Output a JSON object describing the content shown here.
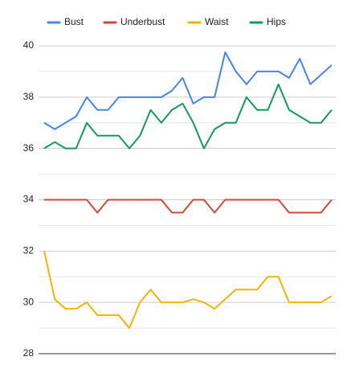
{
  "chart_data": {
    "type": "line",
    "series": [
      {
        "name": "Bust",
        "color": "#4285f4",
        "values": [
          37,
          36.75,
          37,
          37.25,
          38,
          37.5,
          37.5,
          38,
          38,
          38,
          38,
          38,
          38.25,
          38.75,
          37.75,
          38,
          38,
          39.75,
          39,
          38.5,
          39,
          39,
          39,
          38.75,
          39.5,
          38.5,
          38.875,
          39.25
        ]
      },
      {
        "name": "Underbust",
        "color": "#db4437",
        "values": [
          34,
          34,
          34,
          34,
          34,
          33.5,
          34,
          34,
          34,
          34,
          34,
          34,
          33.5,
          33.5,
          34,
          34,
          33.5,
          34,
          34,
          34,
          34,
          34,
          34,
          33.5,
          33.5,
          33.5,
          33.5,
          34
        ]
      },
      {
        "name": "Waist",
        "color": "#f4b400",
        "values": [
          32,
          30.125,
          29.75,
          29.75,
          30,
          29.5,
          29.5,
          29.5,
          29,
          30,
          30.5,
          30,
          30,
          30,
          30.125,
          30,
          29.75,
          30.125,
          30.5,
          30.5,
          30.5,
          31,
          31,
          30,
          30,
          30,
          30,
          30.25
        ]
      },
      {
        "name": "Hips",
        "color": "#0f9d58",
        "values": [
          36,
          36.25,
          36,
          36,
          37,
          36.5,
          36.5,
          36.5,
          36,
          36.5,
          37.5,
          37,
          37.5,
          37.75,
          37,
          36,
          36.75,
          37,
          37,
          38,
          37.5,
          37.5,
          38.5,
          37.5,
          37.25,
          37,
          37,
          37.5
        ]
      }
    ],
    "ylim": [
      28,
      40
    ],
    "yticks": [
      28,
      30,
      32,
      34,
      36,
      38,
      40
    ],
    "minor_yticks": [
      29,
      31,
      33,
      35,
      37,
      39
    ],
    "grid": true,
    "legend": "top"
  }
}
